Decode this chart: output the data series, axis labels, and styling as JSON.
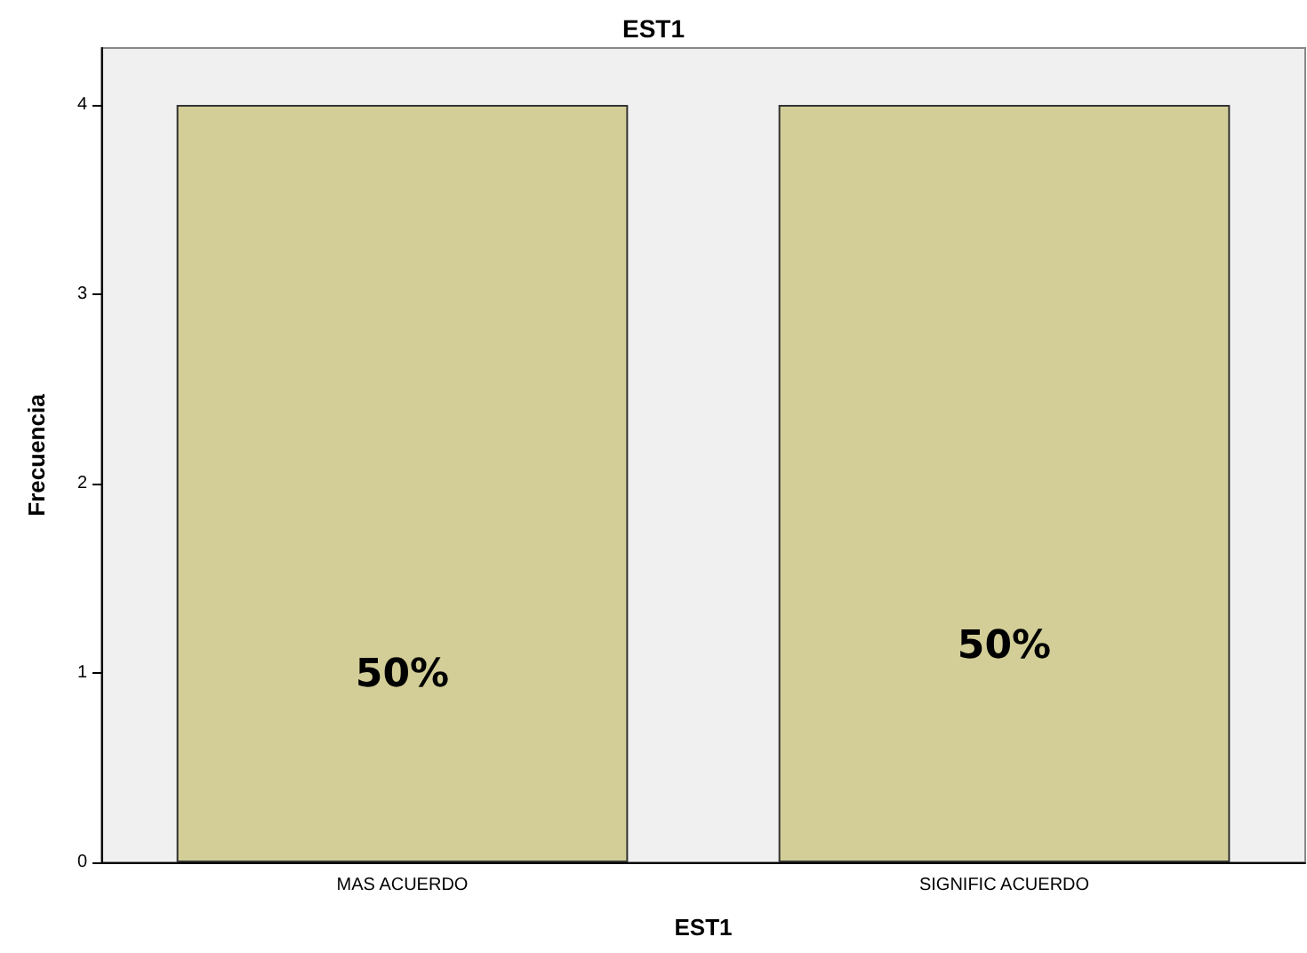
{
  "chart_data": {
    "type": "bar",
    "title": "EST1",
    "xlabel": "EST1",
    "ylabel": "Frecuencia",
    "categories": [
      "MAS ACUERDO",
      "SIGNIFIC ACUERDO"
    ],
    "values": [
      4,
      4
    ],
    "color": "#d3ce97",
    "ylim": [
      0,
      4.3
    ],
    "yticks": [
      0,
      1,
      2,
      3,
      4
    ],
    "grid": false,
    "annotations": [
      "50%",
      "50%"
    ]
  }
}
